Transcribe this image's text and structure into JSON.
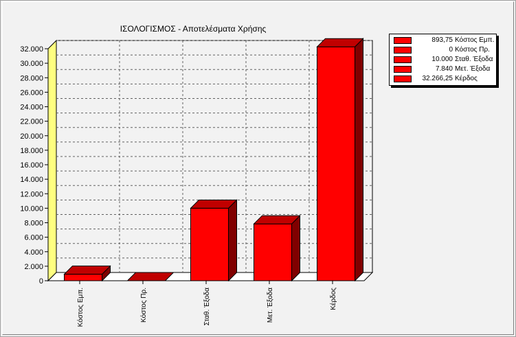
{
  "chart_data": {
    "type": "bar",
    "title": "ΙΣΟΛΟΓΙΣΜΟΣ - Αποτελέσματα Χρήσης",
    "categories": [
      "Κόστος Εμπ.",
      "Κόστος Πρ.",
      "Σταθ. Έξοδα",
      "Μετ. Έξοδα",
      "Κέρδος"
    ],
    "values": [
      893.75,
      0,
      10000,
      7840,
      32266.25
    ],
    "ylim": [
      0,
      32000
    ],
    "ytick_step": 2000,
    "ytick_labels": [
      "0",
      "2.000",
      "4.000",
      "6.000",
      "8.000",
      "10.000",
      "12.000",
      "14.000",
      "16.000",
      "18.000",
      "20.000",
      "22.000",
      "24.000",
      "26.000",
      "28.000",
      "30.000",
      "32.000"
    ],
    "grid": true,
    "legend_position": "top-right",
    "colors": {
      "bar_front": "#ff0000",
      "bar_top": "#c00000",
      "bar_side": "#800000",
      "axis_wall": "#ffff80",
      "plot_bg": "#f2f2f2"
    },
    "legend": [
      {
        "value": "893,75",
        "label": "Κόστος Εμπ."
      },
      {
        "value": "0",
        "label": "Κόστος Πρ."
      },
      {
        "value": "10.000",
        "label": "Σταθ. Έξοδα"
      },
      {
        "value": "7.840",
        "label": "Μετ. Έξοδα"
      },
      {
        "value": "32.266,25",
        "label": "Κέρδος"
      }
    ]
  }
}
